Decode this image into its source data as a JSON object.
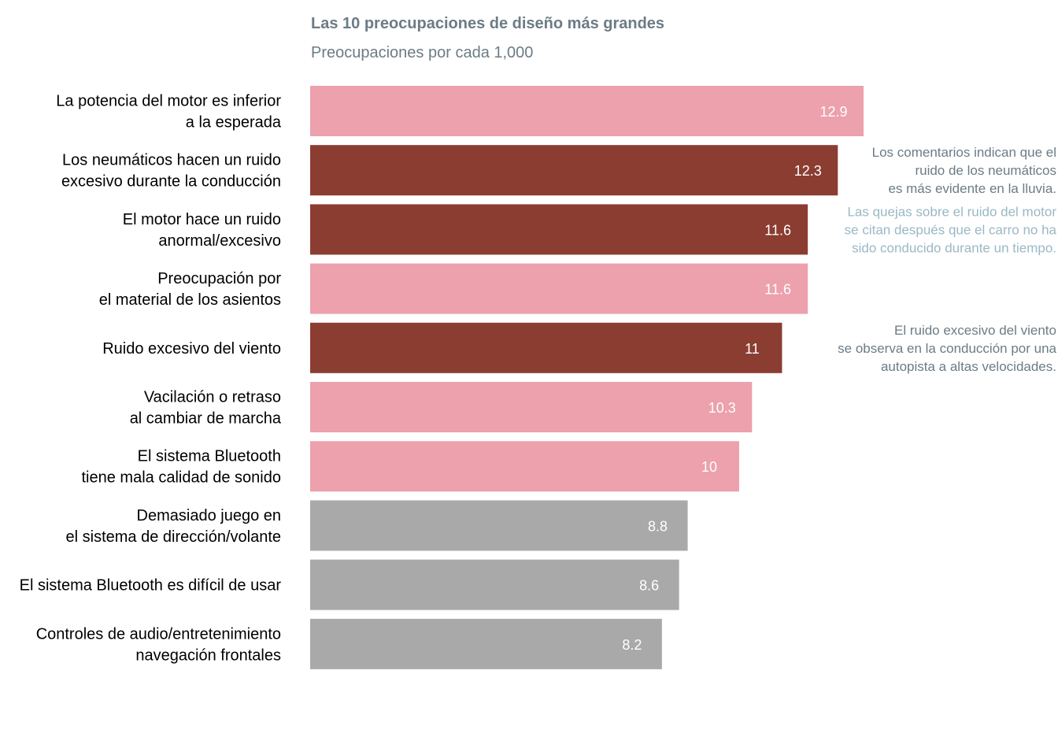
{
  "chart_data": {
    "type": "bar",
    "orientation": "horizontal",
    "title": "Las 10 preocupaciones de diseño más grandes",
    "subtitle": "Preocupaciones por cada 1,000",
    "categories": [
      [
        "La potencia del motor es inferior",
        "a la esperada"
      ],
      [
        "Los neumáticos hacen un ruido",
        "excesivo durante la conducción"
      ],
      [
        "El motor hace un ruido",
        "anormal/excesivo"
      ],
      [
        "Preocupación por",
        "el material de los asientos"
      ],
      [
        "Ruido excesivo del viento"
      ],
      [
        "Vacilación o retraso",
        "al cambiar de marcha"
      ],
      [
        "El sistema Bluetooth",
        "tiene mala calidad de sonido"
      ],
      [
        "Demasiado juego en",
        "el sistema de dirección/volante"
      ],
      [
        "El sistema Bluetooth es difícil de usar"
      ],
      [
        "Controles de audio/entretenimiento",
        "navegación frontales"
      ]
    ],
    "values": [
      12.9,
      12.3,
      11.6,
      11.6,
      11,
      10.3,
      10,
      8.8,
      8.6,
      8.2
    ],
    "value_labels": [
      "12.9",
      "12.3",
      "11.6",
      "11.6",
      "11",
      "10.3",
      "10",
      "8.8",
      "8.6",
      "8.2"
    ],
    "bar_colors": [
      "#eca1ac",
      "#8b3d31",
      "#8b3d31",
      "#eca1ac",
      "#8b3d31",
      "#eca1ac",
      "#eca1ac",
      "#a9a9a9",
      "#a9a9a9",
      "#a9a9a9"
    ],
    "xlim": [
      0,
      12.9
    ],
    "grid": false,
    "annotations": [
      {
        "category_index": 1,
        "lines": [
          "Los comentarios indican que el",
          "ruido de los neumáticos",
          "es más evidente en la lluvia."
        ],
        "color": "#6b7c85"
      },
      {
        "category_index": 2,
        "lines": [
          "Las quejas sobre el ruido del motor",
          "se citan después que el carro no ha",
          "sido conducido durante un tiempo."
        ],
        "color": "#9ab8c6"
      },
      {
        "category_index": 4,
        "lines": [
          "El ruido excesivo del viento",
          "se observa en la conducción por una",
          "autopista a altas velocidades."
        ],
        "color": "#6b7c85"
      }
    ]
  },
  "colors": {
    "title": "#6b7c85",
    "subtitle": "#6b7c85",
    "label": "#000000",
    "value_text": "#ffffff"
  }
}
